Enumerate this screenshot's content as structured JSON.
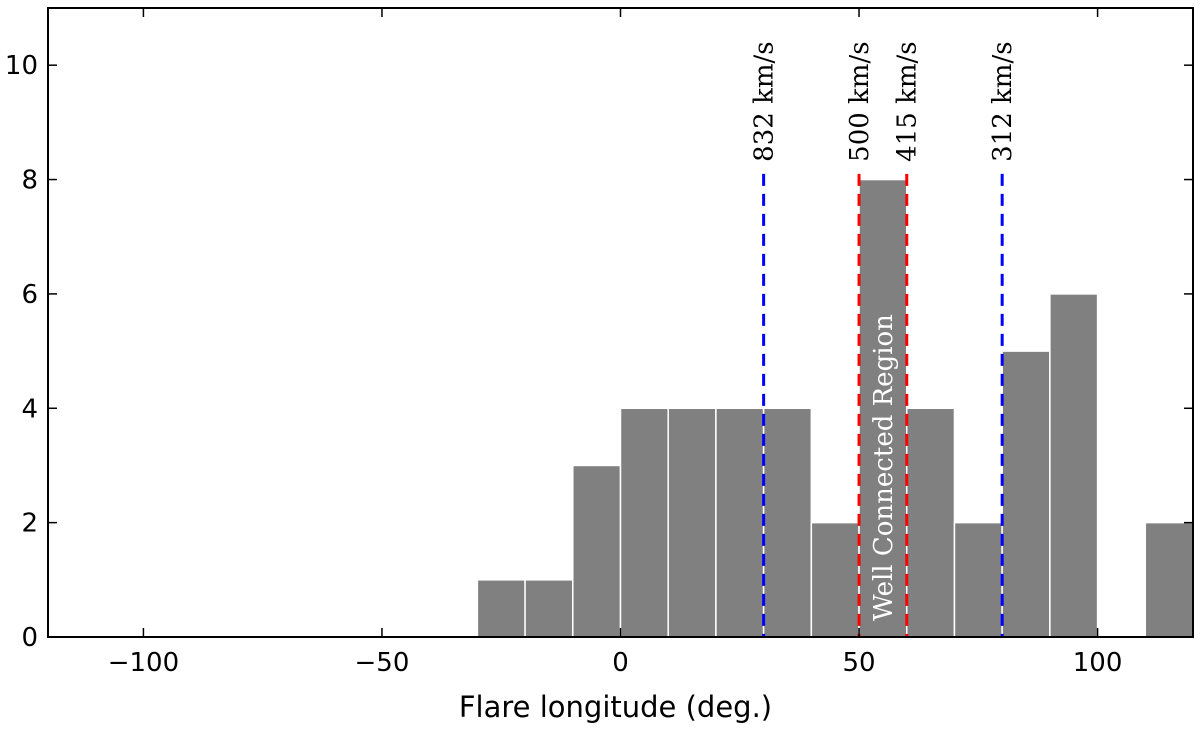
{
  "chart_data": {
    "type": "bar",
    "title": "",
    "xlabel": "Flare longitude (deg.)",
    "ylabel": "",
    "xlim": [
      -120,
      120
    ],
    "ylim": [
      0,
      11
    ],
    "xticks": [
      -100,
      -50,
      0,
      50,
      100
    ],
    "xtick_labels": [
      "−100",
      "−50",
      "0",
      "50",
      "100"
    ],
    "yticks": [
      0,
      2,
      4,
      6,
      8,
      10
    ],
    "ytick_labels": [
      "0",
      "2",
      "4",
      "6",
      "8",
      "10"
    ],
    "grid": false,
    "bin_width": 10,
    "bins": [
      {
        "x0": -30,
        "x1": -20,
        "value": 1
      },
      {
        "x0": -20,
        "x1": -10,
        "value": 1
      },
      {
        "x0": -10,
        "x1": 0,
        "value": 3
      },
      {
        "x0": 0,
        "x1": 10,
        "value": 4
      },
      {
        "x0": 10,
        "x1": 20,
        "value": 4
      },
      {
        "x0": 20,
        "x1": 30,
        "value": 4
      },
      {
        "x0": 30,
        "x1": 40,
        "value": 4
      },
      {
        "x0": 40,
        "x1": 50,
        "value": 2
      },
      {
        "x0": 50,
        "x1": 60,
        "value": 8
      },
      {
        "x0": 60,
        "x1": 70,
        "value": 4
      },
      {
        "x0": 70,
        "x1": 80,
        "value": 2
      },
      {
        "x0": 80,
        "x1": 90,
        "value": 5
      },
      {
        "x0": 90,
        "x1": 100,
        "value": 6
      },
      {
        "x0": 100,
        "x1": 110,
        "value": 0
      },
      {
        "x0": 110,
        "x1": 120,
        "value": 2
      }
    ],
    "bar_color": "#808080",
    "vertical_lines": [
      {
        "x": 30,
        "label": "832 km/s",
        "color": "#0000ff"
      },
      {
        "x": 50,
        "label": "500 km/s",
        "color": "#ff0000"
      },
      {
        "x": 60,
        "label": "415 km/s",
        "color": "#ff0000"
      },
      {
        "x": 80,
        "label": "312 km/s",
        "color": "#0000ff"
      }
    ],
    "region_annotation": {
      "x_from": 50,
      "x_to": 60,
      "text": "Well Connected Region"
    }
  }
}
